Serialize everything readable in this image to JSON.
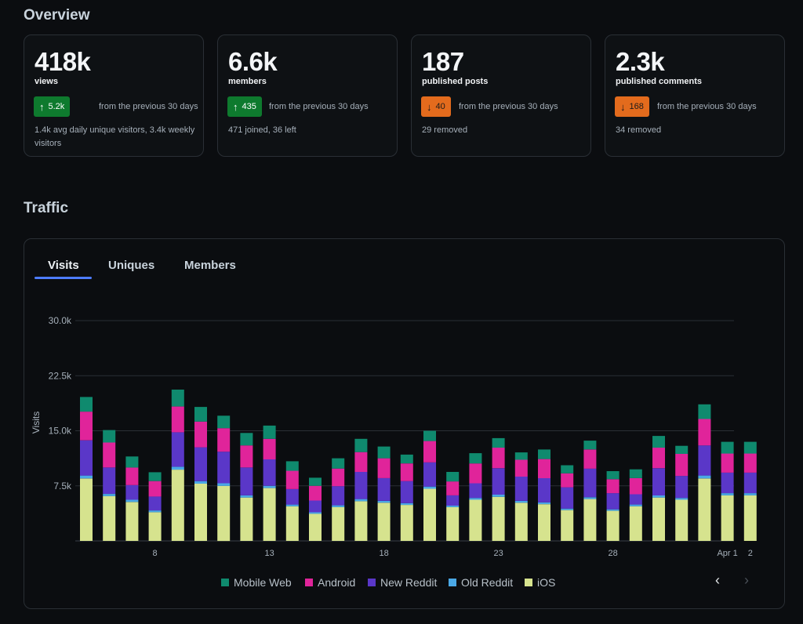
{
  "overview": {
    "title": "Overview",
    "cards": [
      {
        "value": "418k",
        "label": "views",
        "delta": "5.2k",
        "direction": "up",
        "from": "from the previous 30 days",
        "note": "1.4k avg daily unique visitors, 3.4k weekly visitors"
      },
      {
        "value": "6.6k",
        "label": "members",
        "delta": "435",
        "direction": "up",
        "from": "from the previous 30 days",
        "note": "471 joined, 36 left"
      },
      {
        "value": "187",
        "label": "published posts",
        "delta": "40",
        "direction": "down",
        "from": "from the previous 30 days",
        "note": "29 removed"
      },
      {
        "value": "2.3k",
        "label": "published comments",
        "delta": "168",
        "direction": "down",
        "from": "from the previous 30 days",
        "note": "34 removed"
      }
    ]
  },
  "traffic": {
    "title": "Traffic",
    "tabs": [
      "Visits",
      "Uniques",
      "Members"
    ],
    "nav": {
      "prev": "‹",
      "next": "›"
    }
  },
  "colors": {
    "mobile_web": "#0f8a6e",
    "android": "#e0249a",
    "new_reddit": "#5a37c8",
    "old_reddit": "#4aa8e6",
    "ios": "#d6e38e",
    "up": "#0e7a2e",
    "down": "#e36b1d",
    "accent": "#4d7cfe"
  },
  "chart_data": {
    "type": "bar",
    "stacked": true,
    "ylabel": "Visits",
    "ylim": [
      0,
      30000
    ],
    "yticks": [
      "7.5k",
      "15.0k",
      "22.5k",
      "30.0k"
    ],
    "ytick_values": [
      7500,
      15000,
      22500,
      30000
    ],
    "categories": [
      "Mar 4",
      "Mar 5",
      "Mar 6",
      "Mar 7",
      "Mar 8",
      "Mar 9",
      "Mar 10",
      "Mar 11",
      "Mar 12",
      "Mar 13",
      "Mar 14",
      "Mar 15",
      "Mar 16",
      "Mar 17",
      "Mar 18",
      "Mar 19",
      "Mar 20",
      "Mar 21",
      "Mar 22",
      "Mar 23",
      "Mar 24",
      "Mar 25",
      "Mar 26",
      "Mar 27",
      "Mar 28",
      "Mar 29",
      "Mar 30",
      "Mar 31",
      "Apr 1",
      "Apr 2"
    ],
    "xtick_labels": [
      {
        "index": 3,
        "label": "8"
      },
      {
        "index": 8,
        "label": "13"
      },
      {
        "index": 13,
        "label": "18"
      },
      {
        "index": 18,
        "label": "23"
      },
      {
        "index": 23,
        "label": "28"
      },
      {
        "index": 28,
        "label": "Apr 1"
      },
      {
        "index": 29,
        "label": "2"
      }
    ],
    "series": [
      {
        "name": "iOS",
        "values": [
          8500,
          6100,
          5300,
          3900,
          9700,
          7800,
          7500,
          5900,
          7200,
          4700,
          3700,
          4600,
          5400,
          5200,
          4900,
          7100,
          4600,
          5600,
          6000,
          5200,
          5000,
          4200,
          5700,
          4100,
          4700,
          5900,
          5600,
          8500,
          6200,
          6200
        ]
      },
      {
        "name": "Old Reddit",
        "values": [
          400,
          300,
          300,
          250,
          400,
          350,
          350,
          300,
          300,
          250,
          200,
          250,
          300,
          250,
          250,
          300,
          200,
          250,
          300,
          250,
          250,
          200,
          250,
          200,
          250,
          300,
          250,
          400,
          300,
          300
        ]
      },
      {
        "name": "New Reddit",
        "values": [
          4800,
          3600,
          2000,
          1900,
          4700,
          4600,
          4300,
          3800,
          3600,
          2100,
          1600,
          2600,
          3700,
          3100,
          3000,
          3300,
          1400,
          2000,
          3600,
          3300,
          3300,
          2900,
          3900,
          2200,
          1400,
          3700,
          3000,
          4100,
          2800,
          2800
        ]
      },
      {
        "name": "Android",
        "values": [
          3900,
          3400,
          2400,
          2100,
          3500,
          3500,
          3200,
          3000,
          2800,
          2500,
          2000,
          2400,
          2700,
          2700,
          2400,
          2900,
          1900,
          2700,
          2800,
          2300,
          2600,
          1900,
          2600,
          1900,
          2200,
          2800,
          3000,
          3600,
          2600,
          2600
        ]
      },
      {
        "name": "Mobile Web",
        "values": [
          2000,
          1700,
          1500,
          1200,
          2300,
          2000,
          1700,
          1700,
          1800,
          1300,
          1100,
          1400,
          1800,
          1600,
          1200,
          1400,
          1300,
          1400,
          1300,
          1000,
          1300,
          1100,
          1200,
          1100,
          1200,
          1600,
          1100,
          2000,
          1600,
          1600
        ]
      }
    ],
    "legend": [
      "Mobile Web",
      "Android",
      "New Reddit",
      "Old Reddit",
      "iOS"
    ],
    "legend_position": "bottom",
    "grid": true
  }
}
